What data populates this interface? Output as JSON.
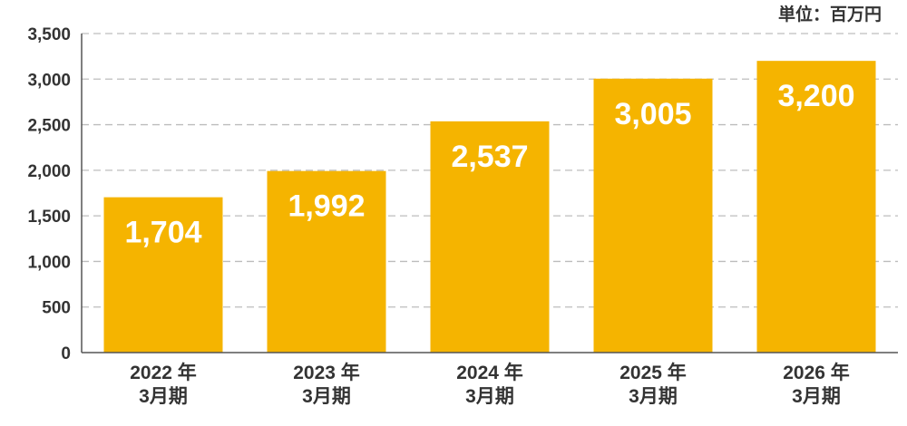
{
  "chart_data": {
    "type": "bar",
    "unit": "単位：百万円",
    "categories": [
      [
        "2022 年",
        "3月期"
      ],
      [
        "2023 年",
        "3月期"
      ],
      [
        "2024 年",
        "3月期"
      ],
      [
        "2025 年",
        "3月期"
      ],
      [
        "2026 年",
        "3月期"
      ]
    ],
    "values": [
      1704,
      1992,
      2537,
      3005,
      3200
    ],
    "value_labels": [
      "1,704",
      "1,992",
      "2,537",
      "3,005",
      "3,200"
    ],
    "ylim": [
      0,
      3500
    ],
    "yticks": [
      0,
      500,
      1000,
      1500,
      2000,
      2500,
      3000,
      3500
    ],
    "ytick_labels": [
      "0",
      "500",
      "1,000",
      "1,500",
      "2,000",
      "2,500",
      "3,000",
      "3,500"
    ],
    "grid": true,
    "colors": {
      "bar": "#F5B400",
      "grid": "#BDBDBD",
      "axis": "#555555",
      "value_text": "#FFFFFF",
      "label_text": "#333333"
    }
  }
}
